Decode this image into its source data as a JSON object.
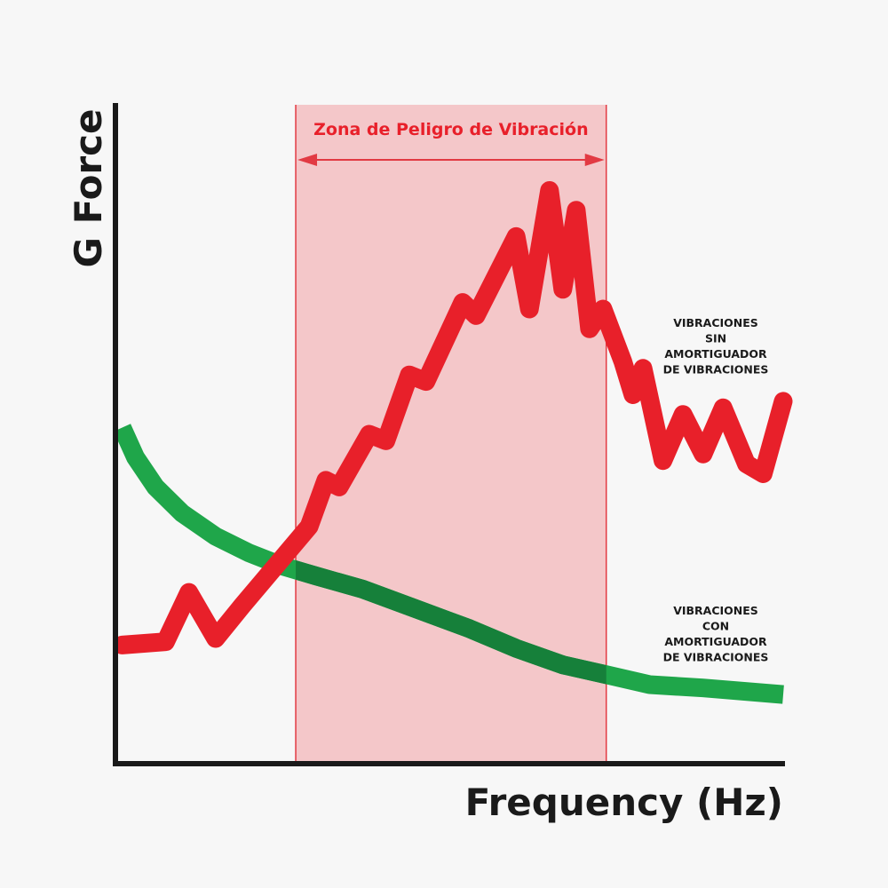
{
  "chart_data": {
    "type": "line",
    "title": "",
    "xlabel": "Frequency (Hz)",
    "ylabel": "G Force",
    "xlim": [
      0,
      100
    ],
    "ylim": [
      0,
      100
    ],
    "grid": false,
    "legend": "inline labels at right",
    "colors": {
      "zone_fill": "#f4c7c9",
      "zone_border": "#e23a43",
      "red_series": "#e8202a",
      "green_series": "#1fa64a",
      "green_in_zone": "#16803a",
      "axis": "#1a1a1a"
    },
    "zone": {
      "label": "Zona de Peligro de Vibración",
      "x_start": 27,
      "x_end": 73.5
    },
    "series": [
      {
        "name_lines": [
          "VIBRACIONES",
          "SIN",
          "AMORTIGUADOR",
          "DE VIBRACIONES"
        ],
        "color": "#e8202a",
        "points": [
          [
            1,
            18
          ],
          [
            7.5,
            18.5
          ],
          [
            11,
            26
          ],
          [
            15,
            19
          ],
          [
            19,
            24
          ],
          [
            24,
            30
          ],
          [
            29,
            36
          ],
          [
            31.5,
            43
          ],
          [
            33.5,
            42
          ],
          [
            38,
            50
          ],
          [
            40.5,
            49
          ],
          [
            44,
            59
          ],
          [
            46.5,
            58
          ],
          [
            52,
            70
          ],
          [
            54,
            68
          ],
          [
            60,
            80
          ],
          [
            62,
            69
          ],
          [
            65,
            87
          ],
          [
            67,
            72
          ],
          [
            69,
            84
          ],
          [
            71,
            66
          ],
          [
            73,
            69
          ],
          [
            76,
            61
          ],
          [
            77.5,
            56
          ],
          [
            79,
            60
          ],
          [
            82,
            46
          ],
          [
            85,
            53
          ],
          [
            88,
            47
          ],
          [
            91,
            54
          ],
          [
            94.5,
            45.5
          ],
          [
            97,
            44
          ],
          [
            100,
            55
          ]
        ]
      },
      {
        "name_lines": [
          "VIBRACIONES",
          "CON",
          "AMORTIGUADOR",
          "DE VIBRACIONES"
        ],
        "color": "#1fa64a",
        "points": [
          [
            1,
            51
          ],
          [
            3,
            46.5
          ],
          [
            6,
            42
          ],
          [
            10,
            38
          ],
          [
            15,
            34.5
          ],
          [
            20,
            32
          ],
          [
            25,
            30
          ],
          [
            30,
            28.5
          ],
          [
            37,
            26.5
          ],
          [
            45,
            23.5
          ],
          [
            53,
            20.5
          ],
          [
            60,
            17.5
          ],
          [
            67,
            15
          ],
          [
            73.5,
            13.5
          ],
          [
            80,
            12
          ],
          [
            88,
            11.5
          ],
          [
            100,
            10.5
          ]
        ]
      }
    ]
  }
}
